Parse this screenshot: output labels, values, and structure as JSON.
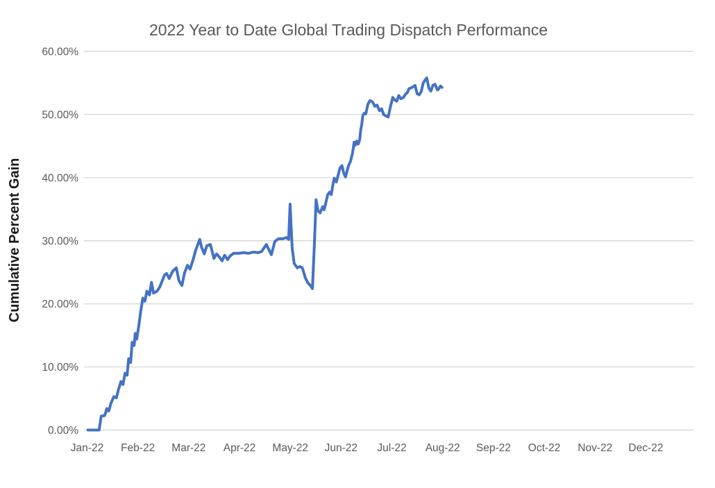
{
  "chart_data": {
    "type": "line",
    "title": "2022 Year to Date Global Trading Dispatch Performance",
    "xlabel": "",
    "ylabel": "Cumulative Percent Gain",
    "legend": "none",
    "grid": "horizontal",
    "ylim": [
      0,
      60
    ],
    "xlim_months": [
      0,
      12
    ],
    "y_tick_labels": [
      "0.00%",
      "10.00%",
      "20.00%",
      "30.00%",
      "40.00%",
      "50.00%",
      "60.00%"
    ],
    "x_tick_labels": [
      "Jan-22",
      "Feb-22",
      "Mar-22",
      "Apr-22",
      "May-22",
      "Jun-22",
      "Jul-22",
      "Aug-22",
      "Sep-22",
      "Oct-22",
      "Nov-22",
      "Dec-22"
    ],
    "colors": {
      "line": "#4472C4",
      "grid": "#D9D9D9",
      "tick_label": "#595959",
      "title": "#595959",
      "axis_title": "#1a1a1a",
      "background": "#FFFFFF"
    },
    "series": [
      {
        "name": "Cumulative Percent Gain",
        "x_unit": "months since Jan-22 (0 = Jan 1, 1 = Feb 1, ...)",
        "y_unit": "percent",
        "points": [
          [
            0.01,
            0.0
          ],
          [
            0.23,
            0.0
          ],
          [
            0.27,
            2.2
          ],
          [
            0.34,
            2.3
          ],
          [
            0.38,
            3.4
          ],
          [
            0.42,
            3.0
          ],
          [
            0.46,
            4.2
          ],
          [
            0.52,
            5.3
          ],
          [
            0.57,
            5.1
          ],
          [
            0.61,
            6.4
          ],
          [
            0.66,
            7.7
          ],
          [
            0.7,
            7.2
          ],
          [
            0.74,
            9.0
          ],
          [
            0.78,
            8.7
          ],
          [
            0.81,
            11.3
          ],
          [
            0.85,
            10.7
          ],
          [
            0.88,
            13.9
          ],
          [
            0.92,
            13.4
          ],
          [
            0.94,
            15.3
          ],
          [
            0.97,
            14.4
          ],
          [
            1.01,
            16.5
          ],
          [
            1.05,
            18.9
          ],
          [
            1.09,
            20.9
          ],
          [
            1.13,
            20.4
          ],
          [
            1.17,
            22.0
          ],
          [
            1.22,
            21.4
          ],
          [
            1.26,
            23.4
          ],
          [
            1.3,
            21.7
          ],
          [
            1.37,
            22.0
          ],
          [
            1.42,
            22.6
          ],
          [
            1.46,
            23.4
          ],
          [
            1.52,
            24.6
          ],
          [
            1.56,
            24.8
          ],
          [
            1.61,
            24.0
          ],
          [
            1.68,
            25.2
          ],
          [
            1.75,
            25.7
          ],
          [
            1.8,
            23.7
          ],
          [
            1.86,
            22.9
          ],
          [
            1.91,
            24.9
          ],
          [
            1.97,
            26.1
          ],
          [
            2.02,
            25.5
          ],
          [
            2.08,
            27.0
          ],
          [
            2.13,
            28.5
          ],
          [
            2.21,
            30.2
          ],
          [
            2.25,
            28.9
          ],
          [
            2.3,
            27.9
          ],
          [
            2.35,
            29.2
          ],
          [
            2.42,
            29.4
          ],
          [
            2.49,
            27.2
          ],
          [
            2.54,
            27.9
          ],
          [
            2.6,
            27.4
          ],
          [
            2.65,
            26.8
          ],
          [
            2.7,
            27.7
          ],
          [
            2.76,
            27.0
          ],
          [
            2.81,
            27.6
          ],
          [
            2.88,
            28.0
          ],
          [
            2.98,
            28.0
          ],
          [
            3.07,
            28.1
          ],
          [
            3.17,
            28.0
          ],
          [
            3.27,
            28.2
          ],
          [
            3.36,
            28.1
          ],
          [
            3.43,
            28.3
          ],
          [
            3.52,
            29.4
          ],
          [
            3.62,
            27.8
          ],
          [
            3.69,
            29.9
          ],
          [
            3.76,
            30.3
          ],
          [
            3.84,
            30.3
          ],
          [
            3.92,
            30.5
          ],
          [
            3.96,
            30.2
          ],
          [
            3.99,
            35.8
          ],
          [
            4.03,
            28.8
          ],
          [
            4.07,
            26.4
          ],
          [
            4.13,
            25.7
          ],
          [
            4.18,
            25.9
          ],
          [
            4.23,
            25.7
          ],
          [
            4.29,
            24.1
          ],
          [
            4.34,
            23.3
          ],
          [
            4.39,
            22.9
          ],
          [
            4.43,
            22.4
          ],
          [
            4.47,
            30.0
          ],
          [
            4.5,
            36.5
          ],
          [
            4.54,
            34.7
          ],
          [
            4.58,
            34.4
          ],
          [
            4.63,
            35.4
          ],
          [
            4.66,
            34.9
          ],
          [
            4.73,
            37.3
          ],
          [
            4.77,
            37.7
          ],
          [
            4.8,
            37.3
          ],
          [
            4.84,
            39.2
          ],
          [
            4.86,
            39.9
          ],
          [
            4.9,
            39.3
          ],
          [
            4.97,
            41.5
          ],
          [
            5.01,
            41.9
          ],
          [
            5.05,
            40.6
          ],
          [
            5.08,
            40.1
          ],
          [
            5.14,
            41.9
          ],
          [
            5.18,
            42.6
          ],
          [
            5.22,
            43.9
          ],
          [
            5.25,
            45.6
          ],
          [
            5.27,
            45.1
          ],
          [
            5.3,
            45.8
          ],
          [
            5.33,
            45.3
          ],
          [
            5.36,
            46.0
          ],
          [
            5.38,
            47.6
          ],
          [
            5.4,
            48.4
          ],
          [
            5.42,
            49.8
          ],
          [
            5.45,
            50.2
          ],
          [
            5.48,
            50.1
          ],
          [
            5.52,
            51.6
          ],
          [
            5.56,
            52.2
          ],
          [
            5.61,
            52.0
          ],
          [
            5.66,
            51.3
          ],
          [
            5.7,
            51.5
          ],
          [
            5.75,
            50.6
          ],
          [
            5.79,
            50.9
          ],
          [
            5.83,
            50.0
          ],
          [
            5.87,
            49.8
          ],
          [
            5.92,
            49.6
          ],
          [
            5.97,
            51.4
          ],
          [
            6.01,
            52.7
          ],
          [
            6.05,
            52.3
          ],
          [
            6.09,
            52.1
          ],
          [
            6.13,
            53.0
          ],
          [
            6.17,
            52.5
          ],
          [
            6.22,
            52.7
          ],
          [
            6.26,
            53.2
          ],
          [
            6.3,
            53.5
          ],
          [
            6.33,
            54.1
          ],
          [
            6.37,
            54.2
          ],
          [
            6.41,
            54.4
          ],
          [
            6.45,
            54.6
          ],
          [
            6.49,
            53.3
          ],
          [
            6.53,
            53.1
          ],
          [
            6.57,
            53.6
          ],
          [
            6.61,
            55.0
          ],
          [
            6.65,
            55.5
          ],
          [
            6.68,
            55.8
          ],
          [
            6.72,
            54.2
          ],
          [
            6.76,
            53.7
          ],
          [
            6.8,
            54.6
          ],
          [
            6.84,
            54.8
          ],
          [
            6.89,
            53.9
          ],
          [
            6.91,
            54.0
          ],
          [
            6.95,
            54.5
          ],
          [
            6.98,
            54.3
          ]
        ]
      }
    ]
  }
}
